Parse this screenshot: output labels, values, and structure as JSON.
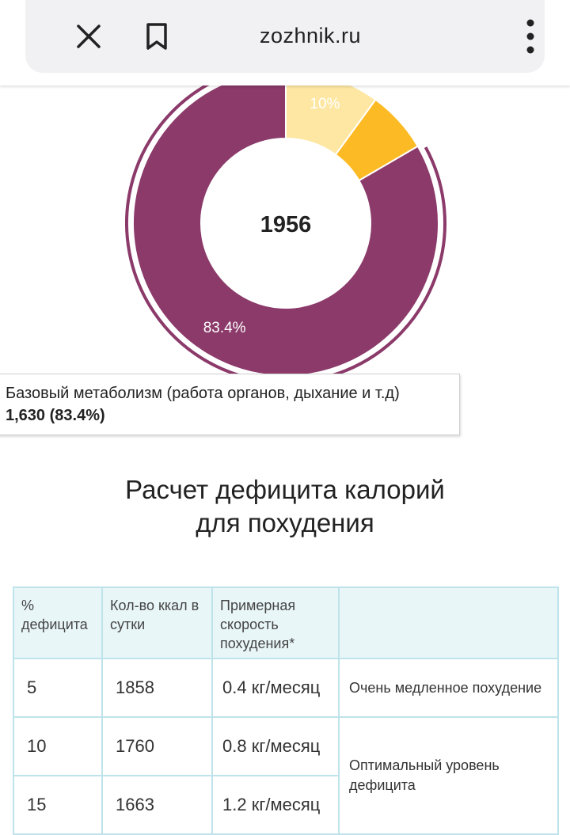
{
  "browser": {
    "url": "zozhnik.ru",
    "icons": {
      "close": "close-icon",
      "bookmark": "bookmark-icon",
      "menu": "more-vert-icon"
    }
  },
  "chart_data": {
    "type": "pie",
    "center_label": "1956",
    "slices": [
      {
        "name": "",
        "value": 10,
        "label": "10%",
        "color": "#fde7a3"
      },
      {
        "name": "",
        "value": 6.6,
        "label": "",
        "color": "#fcbb25"
      },
      {
        "name": "Базовый метаболизм (работа органов, дыхание и т.д)",
        "value": 83.4,
        "label": "83.4%",
        "color": "#8b3a6a"
      }
    ],
    "tooltip": {
      "label": "Базовый метаболизм (работа органов, дыхание и т.д)",
      "value": "1,630 (83.4%)"
    }
  },
  "section": {
    "title_line1": "Расчет дефицита калорий",
    "title_line2": "для похудения"
  },
  "table": {
    "headers": [
      "% дефицита",
      "Кол-во ккал в сутки",
      "Примерная скорость похудения*",
      ""
    ],
    "rows": [
      {
        "pct": "5",
        "kcal": "1858",
        "speed": "0.4 кг/месяц"
      },
      {
        "pct": "10",
        "kcal": "1760",
        "speed": "0.8 кг/месяц"
      },
      {
        "pct": "15",
        "kcal": "1663",
        "speed": "1.2 кг/месяц"
      }
    ],
    "notes": {
      "slow": "Очень медленное похудение",
      "optimal": "Оптимальный уровень дефицита"
    },
    "colors": {
      "slow": "#9a9a9a",
      "optimal": "#5fae57",
      "border": "#bfe3ea",
      "header_bg": "#e9f6f8"
    }
  }
}
